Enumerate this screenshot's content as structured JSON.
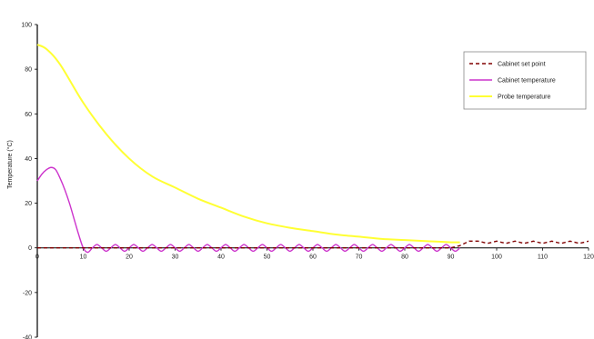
{
  "chart_data": {
    "type": "line",
    "ylabel": "Temperature (°C)",
    "xlim": [
      0,
      120
    ],
    "ylim": [
      -40,
      100
    ],
    "x_ticks": [
      0,
      10,
      20,
      30,
      40,
      50,
      60,
      70,
      80,
      90,
      100,
      110,
      120
    ],
    "y_ticks": [
      -40,
      -20,
      0,
      20,
      40,
      60,
      80,
      100
    ],
    "grid": false,
    "legend_position": "top-right",
    "series": [
      {
        "name": "Cabinet set point",
        "color": "#800000",
        "style": "dashed",
        "x": [
          0,
          10,
          20,
          30,
          40,
          50,
          60,
          70,
          80,
          90,
          92,
          94,
          96,
          98,
          100,
          102,
          104,
          106,
          108,
          110,
          112,
          114,
          116,
          118,
          120
        ],
        "y": [
          0,
          0,
          0,
          0,
          0,
          0,
          0,
          0,
          0,
          0,
          1,
          3,
          3,
          2,
          3,
          2,
          3,
          2,
          3,
          2,
          3,
          2,
          3,
          2,
          3
        ]
      },
      {
        "name": "Cabinet temperature",
        "color": "#cc33cc",
        "style": "solid",
        "x": [
          0,
          1,
          2,
          3,
          4,
          5,
          6,
          7,
          8,
          9,
          10,
          11,
          12,
          13,
          14,
          15,
          16,
          17,
          18,
          19,
          20,
          21,
          22,
          23,
          24,
          25,
          26,
          27,
          28,
          29,
          30,
          31,
          32,
          33,
          34,
          35,
          36,
          37,
          38,
          39,
          40,
          41,
          42,
          43,
          44,
          45,
          46,
          47,
          48,
          49,
          50,
          51,
          52,
          53,
          54,
          55,
          56,
          57,
          58,
          59,
          60,
          61,
          62,
          63,
          64,
          65,
          66,
          67,
          68,
          69,
          70,
          71,
          72,
          73,
          74,
          75,
          76,
          77,
          78,
          79,
          80,
          81,
          82,
          83,
          84,
          85,
          86,
          87,
          88,
          89,
          90,
          91,
          92
        ],
        "y": [
          30,
          33,
          35,
          36,
          35,
          31,
          26,
          20,
          13,
          6,
          0,
          -2,
          0,
          1.5,
          0,
          -1.5,
          0,
          1.5,
          0,
          -1.5,
          0,
          1.5,
          0,
          -1.5,
          0,
          1.5,
          0,
          -1.5,
          0,
          1.5,
          0,
          -1.5,
          0,
          1.5,
          0,
          -1.5,
          0,
          1.5,
          0,
          -1.5,
          0,
          1.5,
          0,
          -1.5,
          0,
          1.5,
          0,
          -1.5,
          0,
          1.5,
          0,
          -1.5,
          0,
          1.5,
          0,
          -1.5,
          0,
          1.5,
          0,
          -1.5,
          0,
          1.5,
          0,
          -1.5,
          0,
          1.5,
          0,
          -1.5,
          0,
          1.5,
          0,
          -1.5,
          0,
          1.5,
          0,
          -1.5,
          0,
          1.5,
          0,
          -1.5,
          0,
          1.5,
          0,
          -1.5,
          0,
          1.5,
          0,
          -1.5,
          0,
          1.5,
          0,
          -1.5,
          0
        ]
      },
      {
        "name": "Probe temperature",
        "color": "#ffff33",
        "style": "solid",
        "x": [
          0,
          2,
          5,
          10,
          15,
          20,
          25,
          30,
          35,
          40,
          45,
          50,
          55,
          60,
          65,
          70,
          75,
          80,
          85,
          90,
          92
        ],
        "y": [
          91,
          89,
          82,
          65,
          51,
          40,
          32,
          27,
          22,
          18,
          14,
          11,
          9,
          7.5,
          6,
          5,
          4,
          3.5,
          3,
          2.5,
          2.5
        ]
      }
    ]
  }
}
